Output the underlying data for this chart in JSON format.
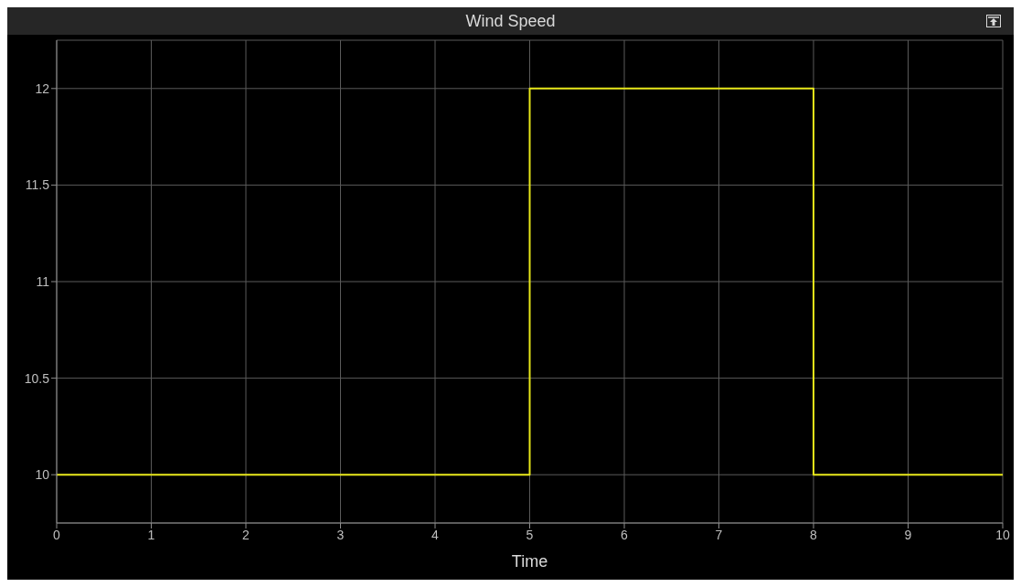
{
  "chart_data": {
    "type": "step",
    "title": "Wind Speed",
    "xlabel": "Time",
    "x": [
      0,
      5,
      8,
      10
    ],
    "series": [
      {
        "color": "#e6e619",
        "values": [
          10,
          12,
          10,
          10
        ]
      }
    ],
    "xlim": [
      0,
      10
    ],
    "xticks": [
      0,
      1,
      2,
      3,
      4,
      5,
      6,
      7,
      8,
      9,
      10
    ],
    "ylim": [
      9.75,
      12.25
    ],
    "yticks": [
      10,
      10.5,
      11,
      11.5,
      12
    ],
    "grid": true,
    "legend": false
  }
}
